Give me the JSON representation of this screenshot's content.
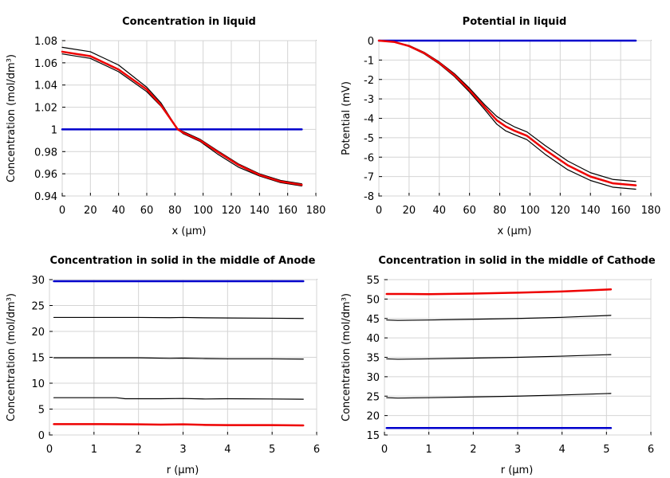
{
  "chart_data": [
    {
      "type": "line",
      "title": "Concentration in liquid",
      "xlabel": "x (µm)",
      "ylabel": "Concentration (mol/dm³)",
      "xlim": [
        0,
        180
      ],
      "ylim": [
        0.94,
        1.08
      ],
      "xticks": [
        "0",
        "20",
        "40",
        "60",
        "80",
        "100",
        "120",
        "140",
        "160",
        "180"
      ],
      "yticks": [
        "0.94",
        "0.96",
        "0.98",
        "1",
        "1.02",
        "1.04",
        "1.06",
        "1.08"
      ],
      "grid": true,
      "series": [
        {
          "color": "#0000cc",
          "width": 2.5,
          "x": [
            0,
            170
          ],
          "y": [
            1.0,
            1.0
          ]
        },
        {
          "color": "#000000",
          "width": 1.2,
          "x": [
            0,
            20,
            40,
            60,
            70,
            82,
            86,
            98,
            110,
            125,
            140,
            155,
            170
          ],
          "y": [
            1.074,
            1.07,
            1.058,
            1.038,
            1.024,
            1.0,
            0.996,
            0.989,
            0.978,
            0.966,
            0.958,
            0.952,
            0.949
          ]
        },
        {
          "color": "#000000",
          "width": 1.2,
          "x": [
            0,
            20,
            40,
            60,
            70,
            82,
            86,
            98,
            110,
            125,
            140,
            155,
            170
          ],
          "y": [
            1.068,
            1.064,
            1.052,
            1.034,
            1.021,
            1.0,
            0.998,
            0.991,
            0.981,
            0.969,
            0.96,
            0.954,
            0.951
          ]
        },
        {
          "color": "#ee0000",
          "width": 2.5,
          "x": [
            0,
            20,
            40,
            60,
            70,
            82,
            86,
            98,
            110,
            125,
            140,
            155,
            170
          ],
          "y": [
            1.07,
            1.066,
            1.054,
            1.036,
            1.022,
            1.0,
            0.997,
            0.99,
            0.98,
            0.968,
            0.959,
            0.953,
            0.95
          ]
        }
      ]
    },
    {
      "type": "line",
      "title": "Potential in liquid",
      "xlabel": "x (µm)",
      "ylabel": "Potential (mV)",
      "xlim": [
        0,
        180
      ],
      "ylim": [
        -8,
        0
      ],
      "xticks": [
        "0",
        "20",
        "40",
        "60",
        "80",
        "100",
        "120",
        "140",
        "160",
        "180"
      ],
      "yticks": [
        "-8",
        "-7",
        "-6",
        "-5",
        "-4",
        "-3",
        "-2",
        "-1",
        "0"
      ],
      "grid": true,
      "series": [
        {
          "color": "#0000cc",
          "width": 2.5,
          "x": [
            0,
            170
          ],
          "y": [
            0,
            0
          ]
        },
        {
          "color": "#000000",
          "width": 1.2,
          "x": [
            0,
            10,
            20,
            30,
            40,
            50,
            60,
            70,
            78,
            84,
            90,
            98,
            110,
            125,
            140,
            155,
            170
          ],
          "y": [
            0,
            -0.07,
            -0.3,
            -0.68,
            -1.2,
            -1.85,
            -2.65,
            -3.55,
            -4.3,
            -4.65,
            -4.85,
            -5.1,
            -5.85,
            -6.65,
            -7.2,
            -7.55,
            -7.65
          ]
        },
        {
          "color": "#000000",
          "width": 1.2,
          "x": [
            0,
            10,
            20,
            30,
            40,
            50,
            60,
            70,
            78,
            84,
            90,
            98,
            110,
            125,
            140,
            155,
            170
          ],
          "y": [
            0,
            -0.06,
            -0.25,
            -0.6,
            -1.1,
            -1.7,
            -2.45,
            -3.3,
            -3.9,
            -4.2,
            -4.45,
            -4.7,
            -5.4,
            -6.2,
            -6.8,
            -7.15,
            -7.25
          ]
        },
        {
          "color": "#ee0000",
          "width": 2.5,
          "x": [
            0,
            10,
            20,
            30,
            40,
            50,
            60,
            70,
            78,
            84,
            90,
            98,
            110,
            125,
            140,
            155,
            170
          ],
          "y": [
            0,
            -0.065,
            -0.28,
            -0.64,
            -1.15,
            -1.78,
            -2.55,
            -3.42,
            -4.1,
            -4.42,
            -4.65,
            -4.9,
            -5.62,
            -6.42,
            -7.0,
            -7.35,
            -7.45
          ]
        }
      ]
    },
    {
      "type": "line",
      "title": "Concentration in solid in the middle of Anode",
      "xlabel": "r (µm)",
      "ylabel": "Concentration (mol/dm³)",
      "xlim": [
        0,
        6
      ],
      "ylim": [
        0,
        30
      ],
      "xticks": [
        "0",
        "1",
        "2",
        "3",
        "4",
        "5",
        "6"
      ],
      "yticks": [
        "0",
        "5",
        "10",
        "15",
        "20",
        "25",
        "30"
      ],
      "grid": true,
      "series": [
        {
          "color": "#0000cc",
          "width": 2.5,
          "x": [
            0.1,
            5.7
          ],
          "y": [
            29.7,
            29.7
          ]
        },
        {
          "color": "#000000",
          "width": 1.2,
          "x": [
            0.1,
            1.0,
            2.0,
            2.7,
            3.0,
            3.3,
            4.0,
            5.0,
            5.7
          ],
          "y": [
            22.7,
            22.7,
            22.7,
            22.65,
            22.7,
            22.65,
            22.6,
            22.55,
            22.5
          ]
        },
        {
          "color": "#000000",
          "width": 1.2,
          "x": [
            0.1,
            1.0,
            2.0,
            2.7,
            3.0,
            3.5,
            4.0,
            5.0,
            5.7
          ],
          "y": [
            14.9,
            14.9,
            14.9,
            14.8,
            14.85,
            14.75,
            14.7,
            14.7,
            14.65
          ]
        },
        {
          "color": "#000000",
          "width": 1.2,
          "x": [
            0.1,
            1.0,
            1.5,
            1.7,
            2.5,
            3.0,
            3.5,
            4.0,
            5.0,
            5.7
          ],
          "y": [
            7.2,
            7.2,
            7.2,
            7.0,
            7.0,
            7.05,
            6.95,
            7.0,
            6.95,
            6.9
          ]
        },
        {
          "color": "#ee0000",
          "width": 2.5,
          "x": [
            0.1,
            1.0,
            2.0,
            2.5,
            3.0,
            3.5,
            4.0,
            5.0,
            5.7
          ],
          "y": [
            2.1,
            2.1,
            2.05,
            2.0,
            2.05,
            1.95,
            1.9,
            1.9,
            1.85
          ]
        }
      ]
    },
    {
      "type": "line",
      "title": "Concentration in solid in the middle of Cathode",
      "xlabel": "r (µm)",
      "ylabel": "Concentration (mol/dm³)",
      "xlim": [
        0,
        6
      ],
      "ylim": [
        15,
        55
      ],
      "xticks": [
        "0",
        "1",
        "2",
        "3",
        "4",
        "5",
        "6"
      ],
      "yticks": [
        "15",
        "20",
        "25",
        "30",
        "35",
        "40",
        "45",
        "50",
        "55"
      ],
      "grid": true,
      "series": [
        {
          "color": "#0000cc",
          "width": 2.5,
          "x": [
            0.05,
            5.1
          ],
          "y": [
            16.8,
            16.8
          ]
        },
        {
          "color": "#000000",
          "width": 1.2,
          "x": [
            0.05,
            0.3,
            1,
            2,
            3,
            4,
            5.1
          ],
          "y": [
            24.6,
            24.5,
            24.6,
            24.8,
            25.0,
            25.3,
            25.7
          ]
        },
        {
          "color": "#000000",
          "width": 1.2,
          "x": [
            0.05,
            0.3,
            1,
            2,
            3,
            4,
            5.1
          ],
          "y": [
            34.6,
            34.5,
            34.6,
            34.8,
            35.0,
            35.3,
            35.7
          ]
        },
        {
          "color": "#000000",
          "width": 1.2,
          "x": [
            0.05,
            0.3,
            1,
            2,
            3,
            4,
            5.1
          ],
          "y": [
            44.6,
            44.5,
            44.6,
            44.8,
            45.0,
            45.3,
            45.8
          ]
        },
        {
          "color": "#ee0000",
          "width": 2.5,
          "x": [
            0.05,
            0.5,
            1,
            2,
            3,
            4,
            5.1
          ],
          "y": [
            51.3,
            51.3,
            51.25,
            51.4,
            51.65,
            51.95,
            52.5
          ]
        }
      ]
    }
  ]
}
